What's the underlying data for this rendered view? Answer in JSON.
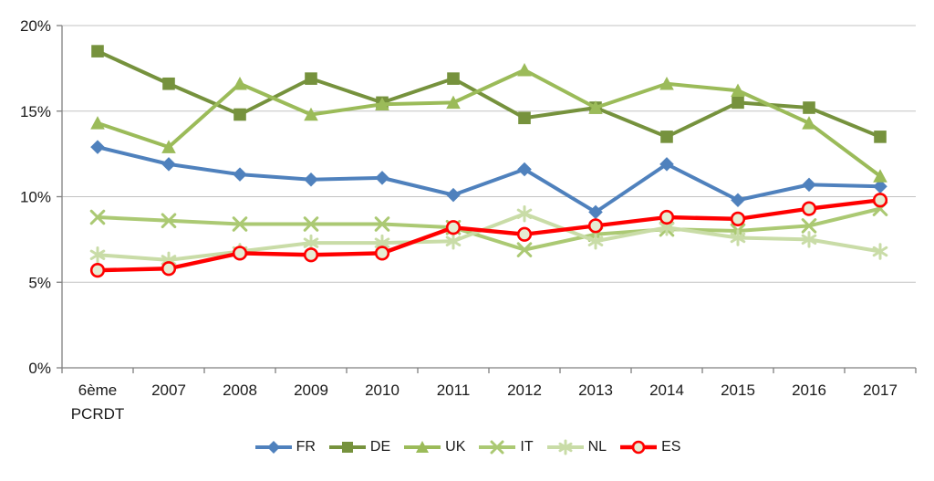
{
  "chart_data": {
    "type": "line",
    "title": "",
    "xlabel": "",
    "ylabel": "",
    "categories": [
      "6ème PCRDT",
      "2007",
      "2008",
      "2009",
      "2010",
      "2011",
      "2012",
      "2013",
      "2014",
      "2015",
      "2016",
      "2017"
    ],
    "series": [
      {
        "name": "FR",
        "marker": "diamond",
        "color": "#4F81BD",
        "values": [
          12.9,
          11.9,
          11.3,
          11.0,
          11.1,
          10.1,
          11.6,
          9.1,
          11.9,
          9.8,
          10.7,
          10.6
        ]
      },
      {
        "name": "DE",
        "marker": "square",
        "color": "#76923D",
        "values": [
          18.5,
          16.6,
          14.8,
          16.9,
          15.5,
          16.9,
          14.6,
          15.2,
          13.5,
          15.5,
          15.2,
          13.5
        ]
      },
      {
        "name": "UK",
        "marker": "triangle",
        "color": "#9BBB59",
        "values": [
          14.3,
          12.9,
          16.6,
          14.8,
          15.4,
          15.5,
          17.4,
          15.2,
          16.6,
          16.2,
          14.3,
          11.2
        ]
      },
      {
        "name": "IT",
        "marker": "x",
        "color": "#ABC973",
        "values": [
          8.8,
          8.6,
          8.4,
          8.4,
          8.4,
          8.2,
          6.9,
          7.8,
          8.1,
          8.0,
          8.3,
          9.3
        ]
      },
      {
        "name": "NL",
        "marker": "asterisk",
        "color": "#C9DCA7",
        "values": [
          6.6,
          6.3,
          6.8,
          7.3,
          7.3,
          7.4,
          9.0,
          7.4,
          8.2,
          7.6,
          7.5,
          6.8
        ]
      },
      {
        "name": "ES",
        "marker": "circle",
        "color": "#FF0000",
        "marker_fill": "#E6ECD3",
        "values": [
          5.7,
          5.8,
          6.7,
          6.6,
          6.7,
          8.2,
          7.8,
          8.3,
          8.8,
          8.7,
          9.3,
          9.8
        ]
      }
    ],
    "y_axis": {
      "min": 0,
      "max": 20,
      "tick_values": [
        0,
        5,
        10,
        15,
        20
      ],
      "tick_labels": [
        "0%",
        "5%",
        "10%",
        "15%",
        "20%"
      ],
      "unit": "%"
    },
    "grid": true,
    "legend_position": "bottom",
    "colors": {
      "gridline": "#C3C3C3",
      "axis": "#808080",
      "text": "#1a1a1a",
      "background": "#ffffff"
    }
  }
}
